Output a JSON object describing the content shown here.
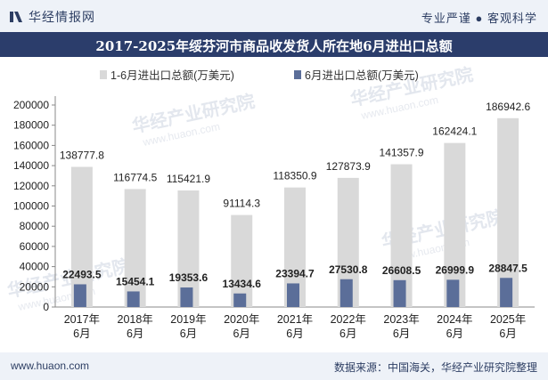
{
  "header": {
    "brand": "华经情报网",
    "tagline": "专业严谨 ● 客观科学",
    "title": "2017-2025年绥芬河市商品收发货人所在地6月进出口总额"
  },
  "footer": {
    "url": "www.huaon.com",
    "source": "数据来源：中国海关，华经产业研究院整理"
  },
  "watermark": {
    "cn": "华经产业研究院",
    "en": "www.huaon.com"
  },
  "colors": {
    "series1": "#d9d9d9",
    "series2": "#5b6e99",
    "header_bar": "#2b3d6b",
    "text": "#222222"
  },
  "chart_data": {
    "type": "bar",
    "categories": [
      "2017年\n6月",
      "2018年\n6月",
      "2019年\n6月",
      "2020年\n6月",
      "2021年\n6月",
      "2022年\n6月",
      "2023年\n6月",
      "2024年\n6月",
      "2025年\n6月"
    ],
    "series": [
      {
        "name": "1-6月进出口总额(万美元)",
        "values": [
          138777.8,
          116774.5,
          115421.9,
          91114.3,
          118350.9,
          127873.9,
          141357.9,
          162424.1,
          186942.6
        ],
        "labels": [
          "138777.8",
          "116774.5",
          "115421.9",
          "91114.3",
          "118350.9",
          "127873.9",
          "141357.9",
          "162424.1",
          "186942.6"
        ]
      },
      {
        "name": "6月进出口总额(万美元)",
        "values": [
          22493.5,
          15454.1,
          19353.6,
          13434.6,
          23394.7,
          27530.8,
          26608.5,
          26999.9,
          28847.5
        ],
        "labels": [
          "22493.5",
          "15454.1",
          "19353.6",
          "13434.6",
          "23394.7",
          "27530.8",
          "26608.5",
          "26999.9",
          "28847.5"
        ]
      }
    ],
    "yticks": [
      "0",
      "20000",
      "40000",
      "60000",
      "80000",
      "100000",
      "120000",
      "140000",
      "160000",
      "180000",
      "200000"
    ],
    "ylim": [
      0,
      200000
    ],
    "legend": "top-center"
  }
}
